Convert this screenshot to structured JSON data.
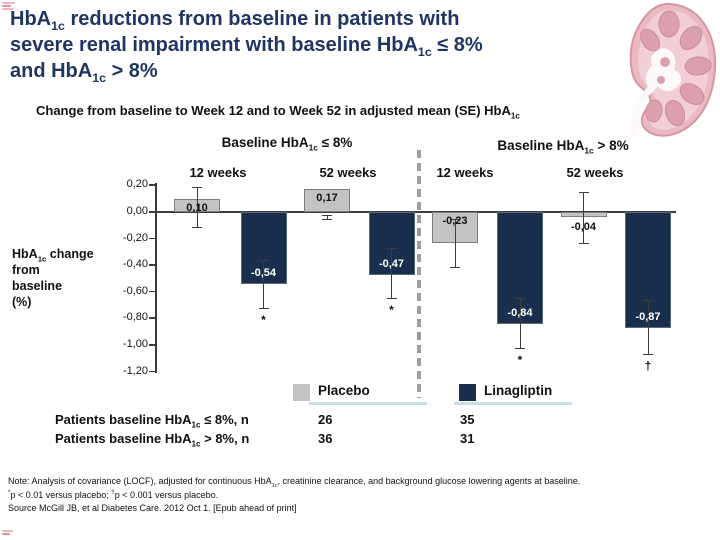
{
  "slide": {
    "title_lines": [
      "HbA~1c~ reductions from baseline in patients with",
      "severe renal impairment with baseline HbA~1c~ ≤ 8%",
      "and HbA~1c~ > 8%"
    ],
    "subtitle": "Change from baseline to Week 12 and to Week 52 in adjusted mean (SE) HbA~1c~",
    "ylabel_lines": [
      "HbA~1c~ change",
      "from",
      "baseline",
      "(%)"
    ]
  },
  "chart_data": {
    "type": "bar",
    "title": "Change from baseline to Week 12 and to Week 52 in adjusted mean (SE) HbA1c",
    "ylabel": "HbA1c change from baseline (%)",
    "ylim": [
      -1.2,
      0.2
    ],
    "decimal_separator": ",",
    "legend_position": "bottom",
    "yticks": [
      {
        "v": 0.2,
        "label": "0,20"
      },
      {
        "v": 0.0,
        "label": "0,00"
      },
      {
        "v": -0.2,
        "label": "-0,20"
      },
      {
        "v": -0.4,
        "label": "-0,40"
      },
      {
        "v": -0.6,
        "label": "-0,60"
      },
      {
        "v": -0.8,
        "label": "-0,80"
      },
      {
        "v": -1.0,
        "label": "-1,00"
      },
      {
        "v": -1.2,
        "label": "-1,20"
      }
    ],
    "series": [
      {
        "name": "Placebo",
        "color": "#c3c3c3",
        "border": "#7f7f7f",
        "label_color": "#111111"
      },
      {
        "name": "Linagliptin",
        "color": "#192f4d",
        "border": "#5c6b7d",
        "label_color": "#ffffff"
      }
    ],
    "groups": [
      {
        "label": "Baseline HbA~1c~ ≤ 8%",
        "timepoints": [
          {
            "label": "12 weeks",
            "bars": [
              {
                "series": "Placebo",
                "value": 0.1,
                "label": "0,10",
                "label_pos": "inside-top",
                "err_hi": 0.19,
                "err_lo": -0.11,
                "marker": ""
              },
              {
                "series": "Linagliptin",
                "value": -0.54,
                "label": "-0,54",
                "label_pos": "inside-bottom",
                "err_hi": -0.36,
                "err_lo": -0.72,
                "marker": "*"
              }
            ]
          },
          {
            "label": "52 weeks",
            "bars": [
              {
                "series": "Placebo",
                "value": 0.17,
                "label": "0,17",
                "label_pos": "inside-top",
                "err_hi": -0.02,
                "err_lo": -0.05,
                "marker": ""
              },
              {
                "series": "Linagliptin",
                "value": -0.47,
                "label": "-0,47",
                "label_pos": "inside-bottom",
                "err_hi": -0.27,
                "err_lo": -0.65,
                "marker": "*"
              }
            ]
          }
        ]
      },
      {
        "label": "Baseline HbA~1c~ > 8%",
        "timepoints": [
          {
            "label": "12 weeks",
            "bars": [
              {
                "series": "Placebo",
                "value": -0.23,
                "label": "-0,23",
                "label_pos": "inside-top",
                "err_hi": -0.05,
                "err_lo": -0.41,
                "marker": ""
              },
              {
                "series": "Linagliptin",
                "value": -0.84,
                "label": "-0,84",
                "label_pos": "inside-bottom",
                "err_hi": -0.65,
                "err_lo": -1.02,
                "marker": "*"
              }
            ]
          },
          {
            "label": "52 weeks",
            "bars": [
              {
                "series": "Placebo",
                "value": -0.04,
                "label": "-0,04",
                "label_pos": "below",
                "err_hi": 0.15,
                "err_lo": -0.23,
                "marker": ""
              },
              {
                "series": "Linagliptin",
                "value": -0.87,
                "label": "-0,87",
                "label_pos": "inside-bottom",
                "err_hi": -0.66,
                "err_lo": -1.07,
                "marker": "†"
              }
            ]
          }
        ]
      }
    ]
  },
  "patients_table": {
    "rows": [
      {
        "label": "Patients baseline HbA~1c~ ≤ 8%, n",
        "placebo": "26",
        "linagliptin": "35"
      },
      {
        "label": "Patients baseline HbA~1c~ > 8%, n",
        "placebo": "36",
        "linagliptin": "31"
      }
    ]
  },
  "notes": {
    "note": "Note: Analysis of covariance (LOCF), adjusted for continuous HbA~1c~, creatinine clearance, and background glucose lowering agents at baseline.",
    "significance": "^*^p < 0.01 versus placebo;  ^†^p < 0.001 versus placebo.",
    "source": "Source McGill JB, et al Diabetes Care. 2012 Oct 1. [Epub ahead of print]"
  },
  "colors": {
    "title": "#1f3562",
    "placebo_bar": "#c3c3c3",
    "linagliptin_bar": "#192f4d",
    "legend_underline": "#c8e0e6",
    "divider": "#9e9e9e",
    "kidney_pink": "#eab9c3"
  }
}
